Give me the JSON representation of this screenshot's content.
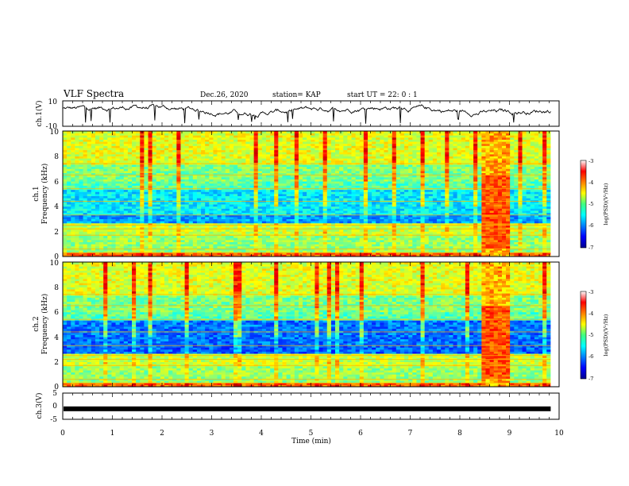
{
  "header": {
    "title": "VLF Spectra",
    "date": "Dec.26, 2020",
    "station": "station= KAP",
    "start_ut": "start  UT =   22: 0  : 1"
  },
  "chart_data": [
    {
      "type": "line",
      "name": "ch1-waveform",
      "ylabel": "ch.1(V)",
      "xlim": [
        0,
        10
      ],
      "ylim": [
        -10,
        10
      ],
      "yticks": [
        "10",
        "-10"
      ],
      "data_end_min": 9.83,
      "description_values": {
        "mean_level": 3,
        "range": [
          -8,
          8
        ]
      }
    },
    {
      "type": "heatmap",
      "name": "ch1-spectrogram",
      "ylabel": "ch.1\nFrequency (kHz)",
      "ylabel_lines": [
        "ch.1",
        "Frequency (kHz)"
      ],
      "xlim": [
        0,
        10
      ],
      "ylim": [
        0,
        10
      ],
      "yticks": [
        "0",
        "2",
        "4",
        "6",
        "8",
        "10"
      ],
      "data_end_min": 9.83,
      "bright_block_min": [
        8.4,
        9.0
      ],
      "colorbar": {
        "label": "log(PSD)(V²/Hz)",
        "range": [
          -7,
          -3
        ],
        "ticks": [
          "-3",
          "-4",
          "-5",
          "-6",
          "-7"
        ]
      }
    },
    {
      "type": "heatmap",
      "name": "ch2-spectrogram",
      "ylabel_lines": [
        "ch.2",
        "Frequency (kHz)"
      ],
      "xlim": [
        0,
        10
      ],
      "ylim": [
        0,
        10
      ],
      "yticks": [
        "0",
        "2",
        "4",
        "6",
        "8",
        "10"
      ],
      "data_end_min": 9.83,
      "bright_block_min": [
        8.4,
        9.0
      ],
      "colorbar": {
        "label": "log(PSD)(V²/Hz)",
        "range": [
          -7,
          -3
        ],
        "ticks": [
          "-3",
          "-4",
          "-5",
          "-6",
          "-7"
        ]
      }
    },
    {
      "type": "line",
      "name": "ch3-waveform",
      "ylabel": "ch.3(V)",
      "xlim": [
        0,
        10
      ],
      "ylim": [
        -5,
        5
      ],
      "yticks": [
        "5",
        "0",
        "-5"
      ],
      "level": -1,
      "data_end_min": 9.83
    }
  ],
  "xaxis": {
    "label": "Time (min)",
    "ticks": [
      "0",
      "1",
      "2",
      "3",
      "4",
      "5",
      "6",
      "7",
      "8",
      "9",
      "10"
    ]
  }
}
